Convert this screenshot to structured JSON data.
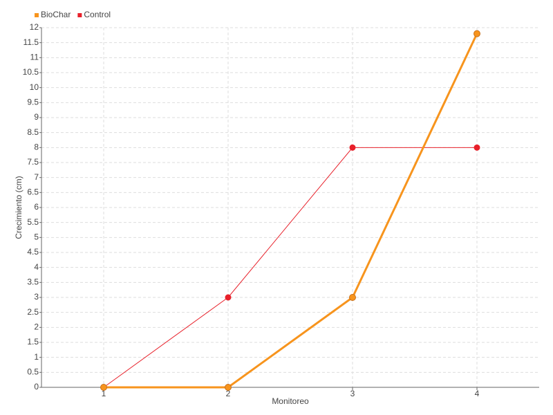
{
  "chart_data": {
    "type": "line",
    "x_label": "Monitoreo",
    "y_label": "Crecimiento (cm)",
    "x": [
      1,
      2,
      3,
      4
    ],
    "xlim": [
      0.5,
      4.5
    ],
    "xticks": [
      1,
      2,
      3,
      4
    ],
    "ylim": [
      0,
      12
    ],
    "yticks": [
      0,
      0.5,
      1,
      1.5,
      2,
      2.5,
      3,
      3.5,
      4,
      4.5,
      5,
      5.5,
      6,
      6.5,
      7,
      7.5,
      8,
      8.5,
      9,
      9.5,
      10,
      10.5,
      11,
      11.5,
      12
    ],
    "grid": true,
    "legend": "top-left",
    "series": [
      {
        "name": "BioChar",
        "color": "#f7941d",
        "values": [
          0,
          0,
          3,
          11.8
        ]
      },
      {
        "name": "Control",
        "color": "#e8202a",
        "values": [
          0,
          3,
          8,
          8
        ]
      }
    ]
  }
}
